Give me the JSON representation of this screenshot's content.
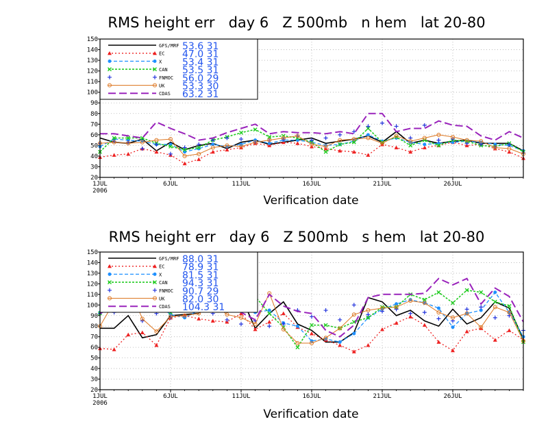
{
  "chart_data": [
    {
      "type": "line",
      "title": "RMS height err   day 6   Z 500mb   n hem   lat 20-80",
      "xlabel": "Verification date",
      "ylabel": "",
      "ylim": [
        20,
        150
      ],
      "yticks": [
        20,
        30,
        40,
        50,
        60,
        70,
        80,
        90,
        100,
        110,
        120,
        130,
        140,
        150
      ],
      "xlim": [
        1,
        31
      ],
      "xticks": [
        {
          "x": 1,
          "label": "1JUL",
          "label2": "2006"
        },
        {
          "x": 6,
          "label": "6JUL"
        },
        {
          "x": 11,
          "label": "11JUL"
        },
        {
          "x": 16,
          "label": "16JUL"
        },
        {
          "x": 21,
          "label": "21JUL"
        },
        {
          "x": 26,
          "label": "26JUL"
        }
      ],
      "grid": true,
      "legend_position": "top-left",
      "x": [
        1,
        2,
        3,
        4,
        5,
        6,
        7,
        8,
        9,
        10,
        11,
        12,
        13,
        14,
        15,
        16,
        17,
        18,
        19,
        20,
        21,
        22,
        23,
        24,
        25,
        26,
        27,
        28,
        29,
        30,
        31
      ],
      "series": [
        {
          "name": "GFS/MRF",
          "mean": "53.6",
          "count": "31",
          "color": "#000000",
          "dash": "",
          "marker": "none",
          "width": 1.6,
          "values": [
            57,
            53,
            52,
            56,
            45,
            53,
            46,
            50,
            52,
            47,
            53,
            55,
            51,
            53,
            55,
            57,
            52,
            54,
            56,
            59,
            53,
            63,
            52,
            55,
            52,
            54,
            55,
            52,
            52,
            52,
            45
          ]
        },
        {
          "name": "EC",
          "mean": "47.0",
          "count": "31",
          "color": "#ee2222",
          "dash": "2,3",
          "marker": "triangle",
          "width": 1.3,
          "values": [
            39,
            41,
            42,
            47,
            44,
            41,
            33,
            37,
            44,
            46,
            48,
            52,
            50,
            53,
            52,
            49,
            47,
            45,
            44,
            41,
            51,
            48,
            44,
            48,
            50,
            53,
            50,
            51,
            47,
            44,
            38
          ]
        },
        {
          "name": "X",
          "mean": "53.4",
          "count": "31",
          "color": "#1e90ff",
          "dash": "5,3",
          "marker": "circle",
          "width": 1.3,
          "values": [
            49,
            56,
            55,
            54,
            51,
            51,
            44,
            47,
            51,
            49,
            51,
            55,
            52,
            55,
            55,
            53,
            50,
            51,
            54,
            60,
            54,
            57,
            53,
            51,
            52,
            53,
            54,
            53,
            51,
            50,
            45
          ]
        },
        {
          "name": "CAN",
          "mean": "53.5",
          "count": "31",
          "color": "#22cc22",
          "dash": "3,2",
          "marker": "x",
          "width": 1.6,
          "values": [
            44,
            57,
            57,
            57,
            52,
            49,
            46,
            48,
            55,
            58,
            62,
            65,
            58,
            59,
            57,
            53,
            44,
            51,
            53,
            66,
            53,
            58,
            50,
            55,
            50,
            55,
            54,
            50,
            49,
            52,
            44
          ]
        },
        {
          "name": "FNMOC",
          "mean": "56.0",
          "count": "29",
          "color": "#2233dd",
          "dash": "",
          "marker": "plus",
          "width": 0,
          "values": [
            52,
            54,
            53,
            47,
            51,
            42,
            48,
            51,
            55,
            57,
            56,
            53,
            55,
            56,
            59,
            55,
            57,
            60,
            63,
            68,
            71,
            68,
            57,
            69,
            55,
            56,
            52,
            51,
            49,
            51,
            43
          ]
        },
        {
          "name": "UK",
          "mean": "53.3",
          "count": "30",
          "color": "#dd7722",
          "dash": "",
          "marker": "ocircle",
          "width": 1,
          "values": [
            52,
            53,
            52,
            53,
            55,
            56,
            40,
            42,
            48,
            50,
            49,
            53,
            55,
            57,
            59,
            51,
            49,
            55,
            56,
            57,
            52,
            59,
            54,
            57,
            60,
            58,
            55,
            54,
            48,
            47,
            42
          ]
        },
        {
          "name": "CDAS",
          "mean": "63.2",
          "count": "31",
          "color": "#9922bb",
          "dash": "11,5",
          "marker": "none",
          "width": 2,
          "values": [
            61,
            61,
            59,
            57,
            72,
            66,
            61,
            55,
            57,
            62,
            66,
            70,
            61,
            63,
            62,
            62,
            61,
            63,
            61,
            80,
            80,
            63,
            66,
            66,
            73,
            69,
            68,
            59,
            55,
            63,
            57
          ]
        }
      ]
    },
    {
      "type": "line",
      "title": "RMS height err   day 6   Z 500mb   s hem   lat 20-80",
      "xlabel": "Verification date",
      "ylabel": "",
      "ylim": [
        20,
        150
      ],
      "yticks": [
        20,
        30,
        40,
        50,
        60,
        70,
        80,
        90,
        100,
        110,
        120,
        130,
        140,
        150
      ],
      "xlim": [
        1,
        31
      ],
      "xticks": [
        {
          "x": 1,
          "label": "1JUL",
          "label2": "2006"
        },
        {
          "x": 6,
          "label": "6JUL"
        },
        {
          "x": 11,
          "label": "11JUL"
        },
        {
          "x": 16,
          "label": "16JUL"
        },
        {
          "x": 21,
          "label": "21JUL"
        },
        {
          "x": 26,
          "label": "26JUL"
        }
      ],
      "grid": true,
      "legend_position": "top-left",
      "x": [
        1,
        2,
        3,
        4,
        5,
        6,
        7,
        8,
        9,
        10,
        11,
        12,
        13,
        14,
        15,
        16,
        17,
        18,
        19,
        20,
        21,
        22,
        23,
        24,
        25,
        26,
        27,
        28,
        29,
        30,
        31
      ],
      "series": [
        {
          "name": "GFS/MRF",
          "mean": "88.0",
          "count": "31",
          "color": "#000000",
          "dash": "",
          "marker": "none",
          "width": 1.6,
          "values": [
            78,
            78,
            90,
            69,
            72,
            90,
            91,
            92,
            113,
            110,
            108,
            78,
            92,
            103,
            82,
            76,
            65,
            65,
            74,
            107,
            103,
            90,
            95,
            85,
            80,
            96,
            82,
            88,
            103,
            97,
            68
          ]
        },
        {
          "name": "EC",
          "mean": "78.9",
          "count": "31",
          "color": "#ee2222",
          "dash": "2,3",
          "marker": "triangle",
          "width": 1.3,
          "values": [
            59,
            58,
            72,
            74,
            62,
            88,
            90,
            87,
            85,
            84,
            92,
            77,
            84,
            92,
            79,
            73,
            67,
            62,
            56,
            62,
            77,
            83,
            89,
            81,
            65,
            57,
            75,
            78,
            67,
            76,
            67
          ]
        },
        {
          "name": "X",
          "mean": "81.5",
          "count": "31",
          "color": "#1e90ff",
          "dash": "5,3",
          "marker": "circle",
          "width": 1.3,
          "values": [
            93,
            99,
            101,
            99,
            101,
            91,
            88,
            95,
            100,
            103,
            100,
            93,
            95,
            83,
            80,
            66,
            68,
            65,
            73,
            88,
            96,
            101,
            105,
            102,
            97,
            79,
            92,
            95,
            112,
            93,
            70
          ]
        },
        {
          "name": "CAN",
          "mean": "94.3",
          "count": "31",
          "color": "#22cc22",
          "dash": "3,2",
          "marker": "x",
          "width": 1.6,
          "values": [
            92,
            121,
            111,
            99,
            110,
            93,
            102,
            102,
            110,
            113,
            118,
            108,
            92,
            79,
            60,
            81,
            81,
            78,
            84,
            88,
            98,
            98,
            110,
            105,
            112,
            102,
            114,
            112,
            103,
            99,
            65
          ]
        },
        {
          "name": "FNMOC",
          "mean": "90.7",
          "count": "29",
          "color": "#2233dd",
          "dash": "",
          "marker": "plus",
          "width": 0,
          "values": [
            92,
            93,
            95,
            85,
            92,
            88,
            98,
            96,
            92,
            86,
            82,
            85,
            80,
            82,
            95,
            89,
            95,
            86,
            100,
            91,
            94,
            96,
            92,
            93,
            87,
            85,
            96,
            98,
            88,
            90,
            76
          ]
        },
        {
          "name": "UK",
          "mean": "82.0",
          "count": "30",
          "color": "#dd7722",
          "dash": "",
          "marker": "ocircle",
          "width": 1,
          "values": [
            80,
            103,
            119,
            87,
            75,
            89,
            90,
            92,
            101,
            91,
            88,
            82,
            111,
            77,
            64,
            64,
            69,
            78,
            91,
            95,
            97,
            98,
            104,
            102,
            93,
            88,
            92,
            79,
            98,
            93,
            66
          ]
        },
        {
          "name": "CDAS",
          "mean": "104.3",
          "count": "31",
          "color": "#9922bb",
          "dash": "11,5",
          "marker": "none",
          "width": 2,
          "values": [
            92,
            99,
            103,
            103,
            123,
            115,
            119,
            115,
            110,
            108,
            93,
            86,
            110,
            99,
            94,
            92,
            76,
            70,
            81,
            107,
            110,
            110,
            110,
            111,
            125,
            119,
            125,
            101,
            116,
            108,
            84
          ]
        }
      ]
    }
  ]
}
